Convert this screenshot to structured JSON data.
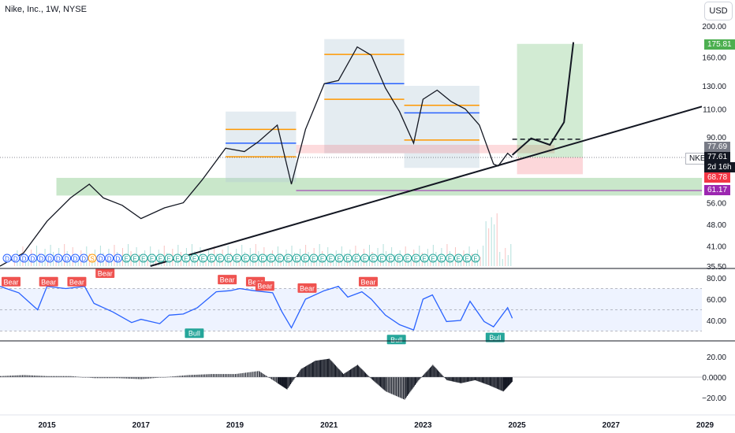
{
  "header": {
    "title": "Nike, Inc., 1W, NYSE",
    "currency": "USD",
    "ticker": "NKE"
  },
  "price_axis": {
    "ticks": [
      "200.00",
      "160.00",
      "130.00",
      "110.00",
      "90.00",
      "72.00",
      "56.00",
      "48.00",
      "41.00",
      "35.50"
    ],
    "labels": {
      "target": "175.81",
      "marker": "77.69",
      "last": "77.61",
      "countdown": "2d 16h",
      "red_level": "68.78",
      "purple_level": "61.17"
    }
  },
  "time_axis": {
    "ticks": [
      "2015",
      "2017",
      "2019",
      "2021",
      "2023",
      "2025",
      "2027",
      "2029"
    ]
  },
  "rsi_axis": {
    "ticks": [
      "80.00",
      "60.00",
      "40.00"
    ]
  },
  "macd_axis": {
    "ticks": [
      "20.00",
      "0.0000",
      "−20.00"
    ]
  },
  "divergence_tags": {
    "bear": "Bear",
    "bull": "Bull"
  },
  "event_marks": [
    "D",
    "D",
    "D",
    "D",
    "D",
    "D",
    "D",
    "D",
    "D",
    "D",
    "S",
    "D",
    "D",
    "D",
    "E",
    "E",
    "E",
    "E",
    "E",
    "E",
    "E",
    "E",
    "E",
    "E",
    "E",
    "E",
    "E",
    "E",
    "E",
    "E",
    "E",
    "E",
    "E",
    "E",
    "E",
    "E",
    "E",
    "E",
    "E",
    "E",
    "E",
    "E",
    "E",
    "E",
    "E",
    "E",
    "E",
    "E",
    "E",
    "E",
    "E",
    "E",
    "E",
    "E",
    "E",
    "E"
  ],
  "colors": {
    "up": "#26a69a",
    "down": "#ef5350",
    "rsi": "#2962ff",
    "orange_level": "#ff9800",
    "blue_level": "#2962ff",
    "green_zone": "#4caf50",
    "red_zone": "#f23645",
    "purple": "#9c27b0"
  },
  "chart_data": [
    {
      "type": "line",
      "title": "Nike, Inc., 1W, NYSE",
      "x": [
        2014.0,
        2014.5,
        2015.0,
        2015.5,
        2015.9,
        2016.2,
        2016.6,
        2017.0,
        2017.5,
        2017.9,
        2018.3,
        2018.8,
        2019.2,
        2019.5,
        2019.9,
        2020.2,
        2020.5,
        2020.9,
        2021.2,
        2021.6,
        2021.9,
        2022.2,
        2022.5,
        2022.8,
        2023.0,
        2023.3,
        2023.6,
        2023.9,
        2024.2,
        2024.5,
        2024.6,
        2024.8,
        2024.9
      ],
      "close": [
        35.5,
        39,
        49,
        58,
        64,
        58,
        55,
        50,
        54,
        56,
        66,
        83,
        81,
        87,
        98,
        64,
        95,
        132,
        135,
        172,
        162,
        128,
        108,
        86,
        118,
        126,
        116,
        110,
        98,
        74,
        73,
        80,
        77.61
      ],
      "xlim": [
        2014.0,
        2030.0
      ],
      "ylim": [
        35.5,
        200.0
      ],
      "y_scale": "log",
      "levels": [
        {
          "name": "target",
          "value": 175.81
        },
        {
          "name": "red_level",
          "value": 68.78
        },
        {
          "name": "purple_level",
          "value": 61.17
        }
      ],
      "projection": {
        "x": [
          2024.9,
          2025.3,
          2025.7,
          2026.0,
          2026.2
        ],
        "y": [
          79,
          89,
          85,
          100,
          178
        ]
      }
    },
    {
      "type": "line",
      "name": "RSI",
      "x": [
        2014.0,
        2014.4,
        2014.8,
        2015.0,
        2015.4,
        2015.8,
        2016.0,
        2016.4,
        2016.8,
        2017.0,
        2017.4,
        2017.6,
        2017.9,
        2018.2,
        2018.6,
        2018.9,
        2019.1,
        2019.4,
        2019.8,
        2020.0,
        2020.2,
        2020.5,
        2020.9,
        2021.2,
        2021.4,
        2021.7,
        2021.9,
        2022.2,
        2022.5,
        2022.8,
        2023.0,
        2023.2,
        2023.5,
        2023.8,
        2024.0,
        2024.3,
        2024.5,
        2024.8,
        2024.9
      ],
      "values": [
        72,
        66,
        50,
        72,
        70,
        72,
        56,
        48,
        38,
        41,
        37,
        45,
        46,
        52,
        67,
        68,
        70,
        68,
        66,
        48,
        33,
        60,
        68,
        72,
        62,
        67,
        60,
        45,
        36,
        31,
        60,
        64,
        39,
        40,
        58,
        39,
        34,
        52,
        42
      ],
      "ylim": [
        25,
        85
      ],
      "bands": [
        30,
        70
      ]
    },
    {
      "type": "bar",
      "name": "MACD histogram",
      "x": [
        2014.0,
        2014.5,
        2015.0,
        2015.5,
        2016.0,
        2016.5,
        2017.0,
        2017.5,
        2018.0,
        2018.5,
        2019.0,
        2019.5,
        2019.9,
        2020.1,
        2020.4,
        2020.7,
        2021.0,
        2021.3,
        2021.6,
        2021.9,
        2022.2,
        2022.6,
        2022.9,
        2023.2,
        2023.5,
        2023.8,
        2024.1,
        2024.4,
        2024.7,
        2024.9
      ],
      "values": [
        1,
        2,
        1,
        1,
        -1,
        -1,
        -2,
        0,
        2,
        3,
        3,
        6,
        -6,
        -12,
        8,
        16,
        18,
        3,
        12,
        -2,
        -14,
        -22,
        -3,
        12,
        -3,
        -6,
        -3,
        -8,
        -14,
        -4
      ],
      "ylim": [
        -30,
        25
      ]
    }
  ]
}
